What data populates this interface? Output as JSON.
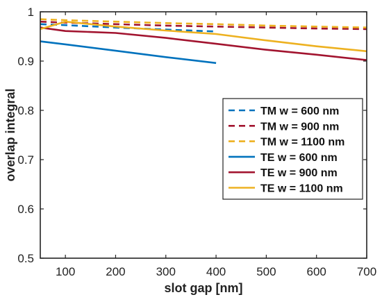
{
  "chart_data": {
    "type": "line",
    "xlabel": "slot gap [nm]",
    "ylabel": "overlap integral",
    "xlim": [
      50,
      700
    ],
    "ylim": [
      0.5,
      1.0
    ],
    "xticks": [
      100,
      200,
      300,
      400,
      500,
      600,
      700
    ],
    "yticks": [
      0.5,
      0.6,
      0.7,
      0.8,
      0.9,
      1.0
    ],
    "xtick_labels": [
      "100",
      "200",
      "300",
      "400",
      "500",
      "600",
      "700"
    ],
    "ytick_labels": [
      "0.5",
      "0.6",
      "0.7",
      "0.8",
      "0.9",
      "1"
    ],
    "grid": false,
    "legend_position": "center-right",
    "series": [
      {
        "name": "TM w = 600 nm",
        "style": "dashed",
        "color": "#0072bd",
        "x": [
          50,
          100,
          200,
          300,
          400
        ],
        "y": [
          0.975,
          0.973,
          0.968,
          0.964,
          0.96
        ]
      },
      {
        "name": "TM w = 900 nm",
        "style": "dashed",
        "color": "#a2142f",
        "x": [
          50,
          100,
          200,
          300,
          400,
          500,
          600,
          700
        ],
        "y": [
          0.98,
          0.978,
          0.975,
          0.972,
          0.97,
          0.968,
          0.966,
          0.965
        ]
      },
      {
        "name": "TM w = 1100 nm",
        "style": "dashed",
        "color": "#edb120",
        "x": [
          50,
          100,
          200,
          300,
          400,
          500,
          600,
          700
        ],
        "y": [
          0.985,
          0.983,
          0.98,
          0.977,
          0.975,
          0.972,
          0.97,
          0.968
        ]
      },
      {
        "name": "TE w = 600 nm",
        "style": "solid",
        "color": "#0072bd",
        "x": [
          50,
          100,
          200,
          300,
          400
        ],
        "y": [
          0.94,
          0.934,
          0.921,
          0.908,
          0.896
        ]
      },
      {
        "name": "TE w = 900 nm",
        "style": "solid",
        "color": "#a2142f",
        "x": [
          50,
          100,
          200,
          300,
          400,
          500,
          600,
          700
        ],
        "y": [
          0.968,
          0.961,
          0.957,
          0.947,
          0.935,
          0.923,
          0.913,
          0.902
        ]
      },
      {
        "name": "TE w = 1100 nm",
        "style": "solid",
        "color": "#edb120",
        "x": [
          50,
          100,
          200,
          300,
          400,
          500,
          600,
          700
        ],
        "y": [
          0.965,
          0.98,
          0.97,
          0.962,
          0.955,
          0.942,
          0.93,
          0.92
        ]
      }
    ]
  }
}
